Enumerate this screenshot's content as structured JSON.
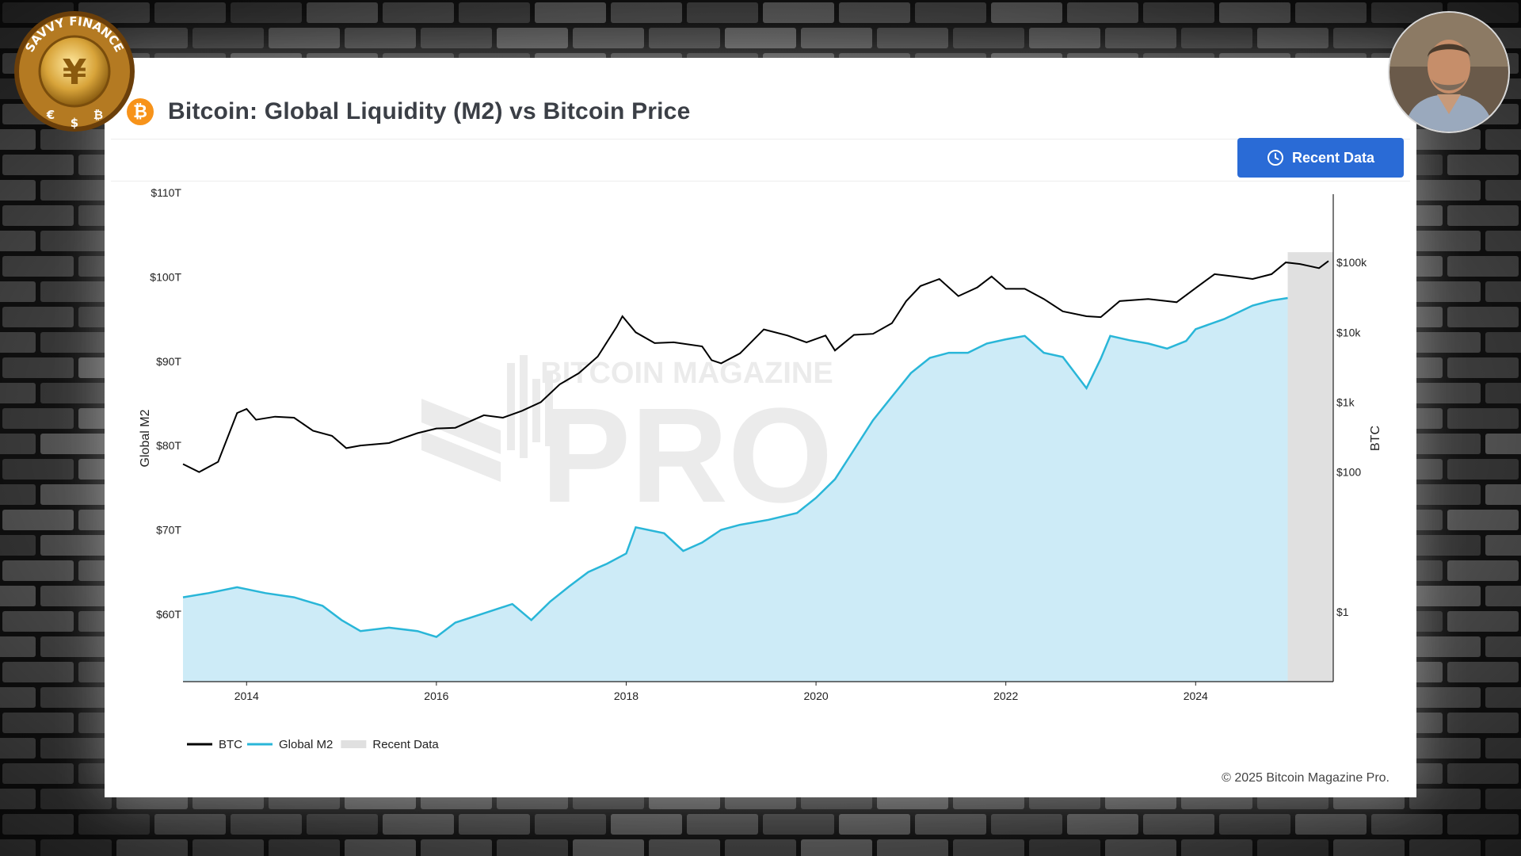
{
  "page": {
    "title": "Bitcoin: Global Liquidity (M2) vs Bitcoin Price",
    "recent_button_label": "Recent Data",
    "copyright": "© 2025 Bitcoin Magazine Pro.",
    "watermark_top": "BITCOIN MAGAZINE",
    "watermark_main": "PRO",
    "channel_logo_text": "SAVVY FINANCE",
    "channel_logo_symbols": [
      "€",
      "$",
      "₿"
    ]
  },
  "colors": {
    "btc_line": "#000000",
    "m2_line": "#29b6d8",
    "m2_fill": "#cdebf7",
    "recent_band": "#e0e0e0",
    "button": "#2a6bd6",
    "bitcoin_orange": "#f7931a"
  },
  "chart_data": {
    "type": "line",
    "title": "Bitcoin: Global Liquidity (M2) vs Bitcoin Price",
    "xlabel": "",
    "ylabel_left": "Global M2",
    "ylabel_right": "BTC",
    "x_ticks": [
      "2014",
      "2016",
      "2018",
      "2020",
      "2022",
      "2024"
    ],
    "x_range": [
      2013.33,
      2025.45
    ],
    "y_left_ticks": [
      "$60T",
      "$70T",
      "$80T",
      "$90T",
      "$100T",
      "$110T"
    ],
    "y_left_range": [
      52,
      110
    ],
    "y_right_ticks": [
      "$1",
      "$100",
      "$1k",
      "$10k",
      "$100k"
    ],
    "y_right_scale": "log",
    "y_right_range": [
      0.1,
      1000000
    ],
    "recent_data_range": [
      2024.97,
      2025.45
    ],
    "legend": [
      "BTC",
      "Global M2",
      "Recent Data"
    ],
    "legend_position": "bottom-left",
    "grid": false,
    "series": [
      {
        "name": "BTC",
        "axis": "right",
        "x": [
          2013.33,
          2013.5,
          2013.7,
          2013.9,
          2014.0,
          2014.1,
          2014.3,
          2014.5,
          2014.7,
          2014.9,
          2015.05,
          2015.2,
          2015.5,
          2015.8,
          2016.0,
          2016.2,
          2016.5,
          2016.7,
          2016.9,
          2017.1,
          2017.3,
          2017.5,
          2017.7,
          2017.9,
          2017.96,
          2018.1,
          2018.3,
          2018.5,
          2018.8,
          2018.9,
          2019.0,
          2019.2,
          2019.45,
          2019.7,
          2019.9,
          2020.1,
          2020.2,
          2020.4,
          2020.6,
          2020.8,
          2020.95,
          2021.1,
          2021.3,
          2021.5,
          2021.7,
          2021.85,
          2022.0,
          2022.2,
          2022.4,
          2022.6,
          2022.85,
          2023.0,
          2023.2,
          2023.5,
          2023.8,
          2024.0,
          2024.2,
          2024.4,
          2024.6,
          2024.8,
          2024.95,
          2025.1,
          2025.3,
          2025.4
        ],
        "values": [
          130,
          100,
          140,
          700,
          800,
          560,
          620,
          600,
          390,
          330,
          220,
          240,
          260,
          360,
          420,
          430,
          650,
          600,
          750,
          1000,
          1800,
          2600,
          4500,
          12000,
          17000,
          10000,
          7000,
          7200,
          6300,
          4000,
          3600,
          5000,
          11000,
          9000,
          7200,
          9000,
          5500,
          9200,
          9500,
          13500,
          28000,
          46000,
          58000,
          33000,
          44000,
          63000,
          42000,
          42000,
          30000,
          20000,
          17000,
          16500,
          28000,
          30000,
          27000,
          43000,
          68000,
          63000,
          58000,
          68000,
          100000,
          95000,
          83000,
          105000
        ]
      },
      {
        "name": "Global M2",
        "axis": "left",
        "x": [
          2013.33,
          2013.6,
          2013.9,
          2014.2,
          2014.5,
          2014.8,
          2015.0,
          2015.2,
          2015.5,
          2015.8,
          2016.0,
          2016.2,
          2016.5,
          2016.8,
          2017.0,
          2017.2,
          2017.4,
          2017.6,
          2017.8,
          2018.0,
          2018.1,
          2018.4,
          2018.6,
          2018.8,
          2019.0,
          2019.2,
          2019.5,
          2019.8,
          2020.0,
          2020.2,
          2020.4,
          2020.6,
          2020.8,
          2021.0,
          2021.2,
          2021.4,
          2021.6,
          2021.8,
          2022.0,
          2022.2,
          2022.4,
          2022.6,
          2022.85,
          2023.0,
          2023.1,
          2023.3,
          2023.5,
          2023.7,
          2023.9,
          2024.0,
          2024.3,
          2024.6,
          2024.8,
          2024.97
        ],
        "values": [
          62.0,
          62.5,
          63.2,
          62.5,
          62.0,
          61.0,
          59.3,
          58.0,
          58.4,
          58.0,
          57.3,
          59.0,
          60.1,
          61.2,
          59.3,
          61.5,
          63.3,
          65.0,
          66.0,
          67.2,
          70.3,
          69.6,
          67.5,
          68.5,
          70.0,
          70.6,
          71.2,
          72.0,
          73.8,
          76.0,
          79.5,
          83.0,
          85.8,
          88.6,
          90.4,
          91.0,
          91.0,
          92.1,
          92.6,
          93.0,
          91.0,
          90.5,
          86.8,
          90.3,
          93.0,
          92.5,
          92.1,
          91.5,
          92.4,
          93.8,
          95.0,
          96.6,
          97.2,
          97.5
        ]
      }
    ]
  }
}
